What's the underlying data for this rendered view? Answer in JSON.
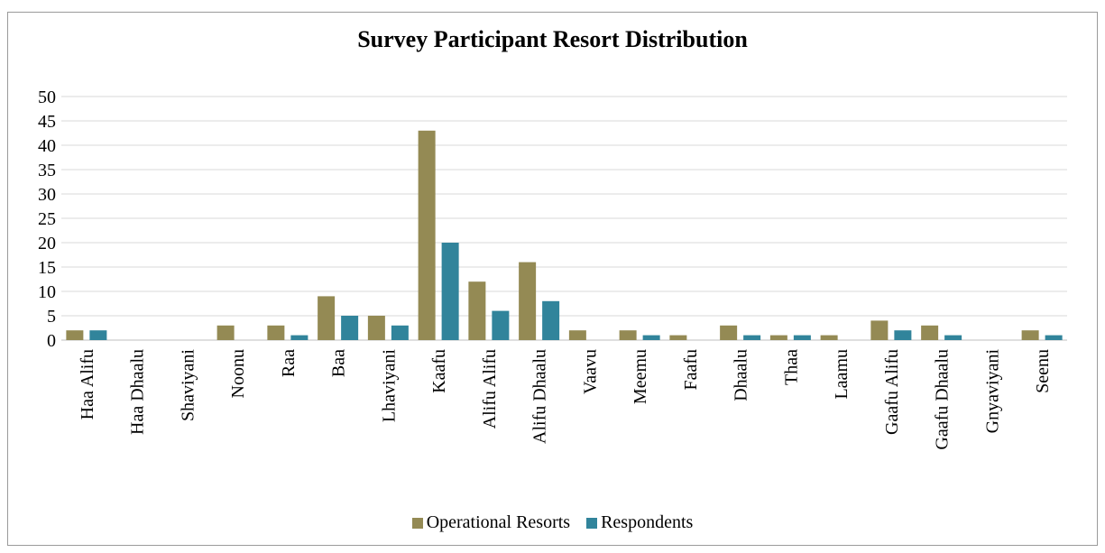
{
  "chart_data": {
    "type": "bar",
    "title": "Survey Participant Resort Distribution",
    "xlabel": "",
    "ylabel": "",
    "ylim": [
      0,
      50
    ],
    "yticks": [
      0,
      5,
      10,
      15,
      20,
      25,
      30,
      35,
      40,
      45,
      50
    ],
    "grid": true,
    "legend_position": "bottom",
    "categories": [
      "Haa Alifu",
      "Haa Dhaalu",
      "Shaviyani",
      "Noonu",
      "Raa",
      "Baa",
      "Lhaviyani",
      "Kaafu",
      "Alifu Alifu",
      "Alifu Dhaalu",
      "Vaavu",
      "Meemu",
      "Faafu",
      "Dhaalu",
      "Thaa",
      "Laamu",
      "Gaafu Alifu",
      "Gaafu Dhaalu",
      "Gnyaviyani",
      "Seenu"
    ],
    "series": [
      {
        "name": "Operational Resorts",
        "color": "#948A54",
        "values": [
          2,
          0,
          0,
          3,
          3,
          9,
          5,
          43,
          12,
          16,
          2,
          2,
          1,
          3,
          1,
          1,
          4,
          3,
          0,
          2
        ]
      },
      {
        "name": "Respondents",
        "color": "#31849B",
        "values": [
          2,
          0,
          0,
          0,
          1,
          5,
          3,
          20,
          6,
          8,
          0,
          1,
          0,
          1,
          1,
          0,
          2,
          1,
          0,
          1
        ]
      }
    ]
  }
}
